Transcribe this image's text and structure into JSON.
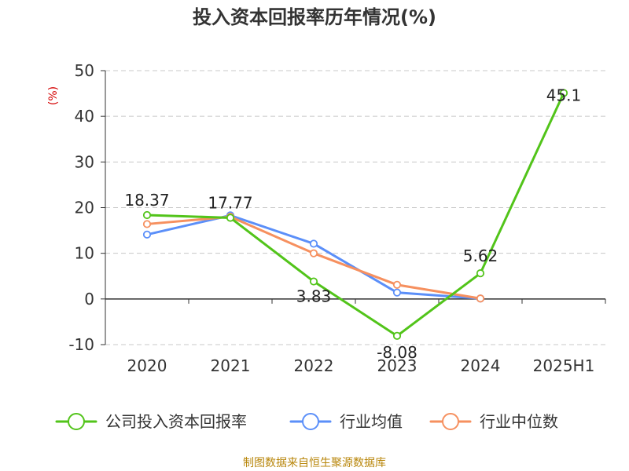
{
  "chart_data": {
    "type": "line",
    "title": "投入资本回报率历年情况(%)",
    "ylabel": "(%)",
    "xlabel": "",
    "categories": [
      "2020",
      "2021",
      "2022",
      "2023",
      "2024",
      "2025H1"
    ],
    "ylim": [
      -10,
      50
    ],
    "yticks": [
      50,
      40,
      30,
      20,
      10,
      0,
      -10
    ],
    "grid": true,
    "legend_position": "bottom",
    "series": [
      {
        "name": "公司投入资本回报率",
        "color": "#52c41a",
        "values": [
          18.37,
          17.77,
          3.83,
          -8.08,
          5.62,
          45.1
        ],
        "labels": [
          "18.37",
          "17.77",
          "3.83",
          "-8.08",
          "5.62",
          "45.1"
        ]
      },
      {
        "name": "行业均值",
        "color": "#5b8ff9",
        "values": [
          14.1,
          18.3,
          12.1,
          1.4,
          0.1,
          null
        ]
      },
      {
        "name": "行业中位数",
        "color": "#f6905f",
        "values": [
          16.4,
          18.0,
          10.0,
          3.1,
          0.1,
          null
        ]
      }
    ]
  },
  "footer": {
    "source": "制图数据来自恒生聚源数据库"
  }
}
